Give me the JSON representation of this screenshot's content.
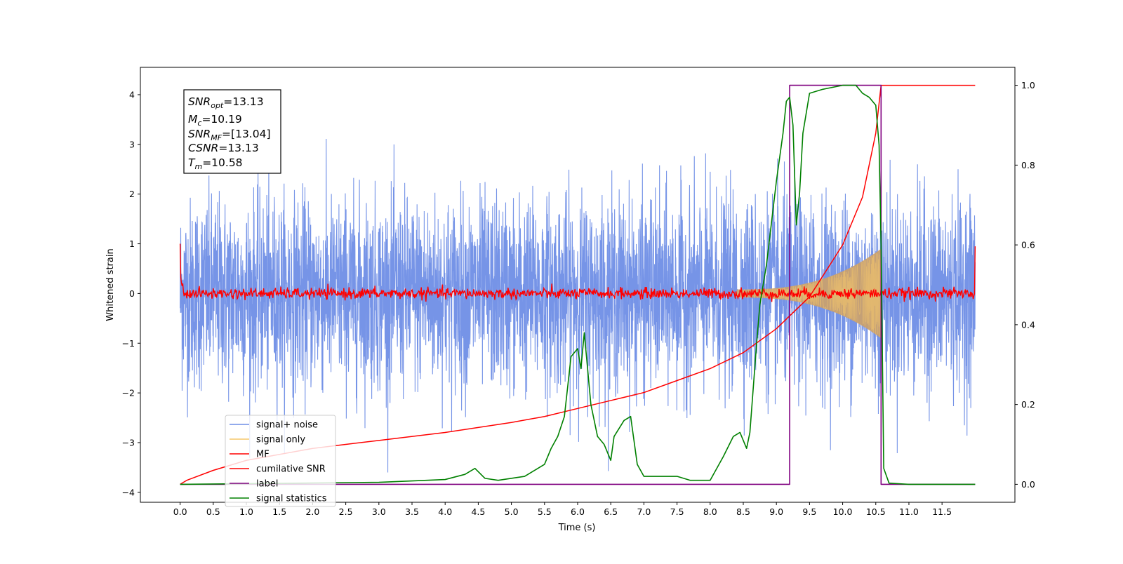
{
  "chart_data": {
    "type": "line",
    "xlabel": "Time (s)",
    "ylabel": "Whitened strain",
    "xlim": [
      -0.6,
      12.6
    ],
    "ylim": [
      -4.2,
      4.55
    ],
    "y2lim": [
      -0.045,
      1.045
    ],
    "grid": false,
    "legend_position": "lower-left",
    "x_ticks": [
      "0.0",
      "0.5",
      "1.0",
      "1.5",
      "2.0",
      "2.5",
      "3.0",
      "3.5",
      "4.0",
      "4.5",
      "5.0",
      "5.5",
      "6.0",
      "6.5",
      "7.0",
      "7.5",
      "8.0",
      "8.5",
      "9.0",
      "9.5",
      "10.0",
      "10.5",
      "11.0",
      "11.5"
    ],
    "y_ticks": [
      "4",
      "3",
      "2",
      "1",
      "0",
      "−1",
      "−2",
      "−3",
      "−4"
    ],
    "y2_ticks": [
      "1.0",
      "0.8",
      "0.6",
      "0.4",
      "0.2",
      "0.0"
    ],
    "annotation": {
      "line1_sym": "SNR",
      "line1_sub": "opt",
      "line1_val": "=13.13",
      "line2_sym": "M",
      "line2_sub": "c",
      "line2_val": "=10.19",
      "line3_sym": "SNR",
      "line3_sub": "MF",
      "line3_val": "=[13.04]",
      "line4_sym": "CSNR",
      "line4_val": "=13.13",
      "line5_sym": "T",
      "line5_sub": "m",
      "line5_val": "=10.58"
    },
    "series": [
      {
        "name": "signal+ noise",
        "axis": "left",
        "color": "#6f8ee6",
        "description": "whitened noise, roughly symmetric around 0 with peaks to about ±3.5"
      },
      {
        "name": "signal only",
        "axis": "left",
        "color": "#f5c76a",
        "description": "chirp rising from 0 amplitude near 8.5 s to about ±0.9 at 10.58 s, then zero"
      },
      {
        "name": "MF",
        "axis": "left",
        "color": "#ff0000",
        "description": "matched-filter output near 0, edge spikes to about 1.0 at 0.0 s and 12.0 s"
      },
      {
        "name": "cumilative SNR",
        "axis": "right",
        "color": "#ff0000",
        "x": [
          0.0,
          0.1,
          0.5,
          1.0,
          2.0,
          3.0,
          4.0,
          5.0,
          5.5,
          6.0,
          6.5,
          7.0,
          7.5,
          8.0,
          8.5,
          9.0,
          9.5,
          10.0,
          10.3,
          10.5,
          10.58,
          12.0
        ],
        "y": [
          0.0,
          0.01,
          0.035,
          0.06,
          0.09,
          0.11,
          0.13,
          0.155,
          0.17,
          0.19,
          0.21,
          0.23,
          0.26,
          0.29,
          0.33,
          0.39,
          0.47,
          0.6,
          0.72,
          0.88,
          1.0,
          1.0
        ]
      },
      {
        "name": "label",
        "axis": "right",
        "color": "#800080",
        "x": [
          0.0,
          9.2,
          9.2,
          10.58,
          10.58,
          12.0
        ],
        "y": [
          0,
          0,
          1,
          1,
          0,
          0
        ]
      },
      {
        "name": "signal statistics",
        "axis": "right",
        "color": "#008000",
        "x": [
          0.0,
          3.0,
          4.0,
          4.3,
          4.45,
          4.6,
          4.8,
          5.2,
          5.5,
          5.6,
          5.7,
          5.8,
          5.9,
          6.0,
          6.05,
          6.1,
          6.2,
          6.3,
          6.4,
          6.5,
          6.55,
          6.7,
          6.8,
          6.9,
          7.0,
          7.3,
          7.5,
          7.7,
          8.0,
          8.2,
          8.35,
          8.45,
          8.55,
          8.6,
          8.7,
          8.75,
          8.85,
          8.9,
          9.0,
          9.1,
          9.15,
          9.2,
          9.25,
          9.3,
          9.35,
          9.4,
          9.5,
          9.7,
          10.0,
          10.2,
          10.3,
          10.4,
          10.5,
          10.55,
          10.58,
          10.62,
          10.7,
          11.0,
          12.0
        ],
        "y": [
          0.0,
          0.005,
          0.012,
          0.025,
          0.04,
          0.015,
          0.01,
          0.02,
          0.05,
          0.09,
          0.12,
          0.17,
          0.32,
          0.34,
          0.29,
          0.38,
          0.2,
          0.12,
          0.1,
          0.06,
          0.12,
          0.16,
          0.17,
          0.05,
          0.02,
          0.02,
          0.02,
          0.01,
          0.01,
          0.07,
          0.12,
          0.13,
          0.09,
          0.13,
          0.35,
          0.45,
          0.55,
          0.62,
          0.76,
          0.88,
          0.96,
          0.97,
          0.9,
          0.65,
          0.73,
          0.88,
          0.98,
          0.99,
          1.0,
          1.0,
          0.98,
          0.97,
          0.95,
          0.85,
          0.6,
          0.04,
          0.003,
          0.0,
          0.0
        ]
      }
    ]
  }
}
